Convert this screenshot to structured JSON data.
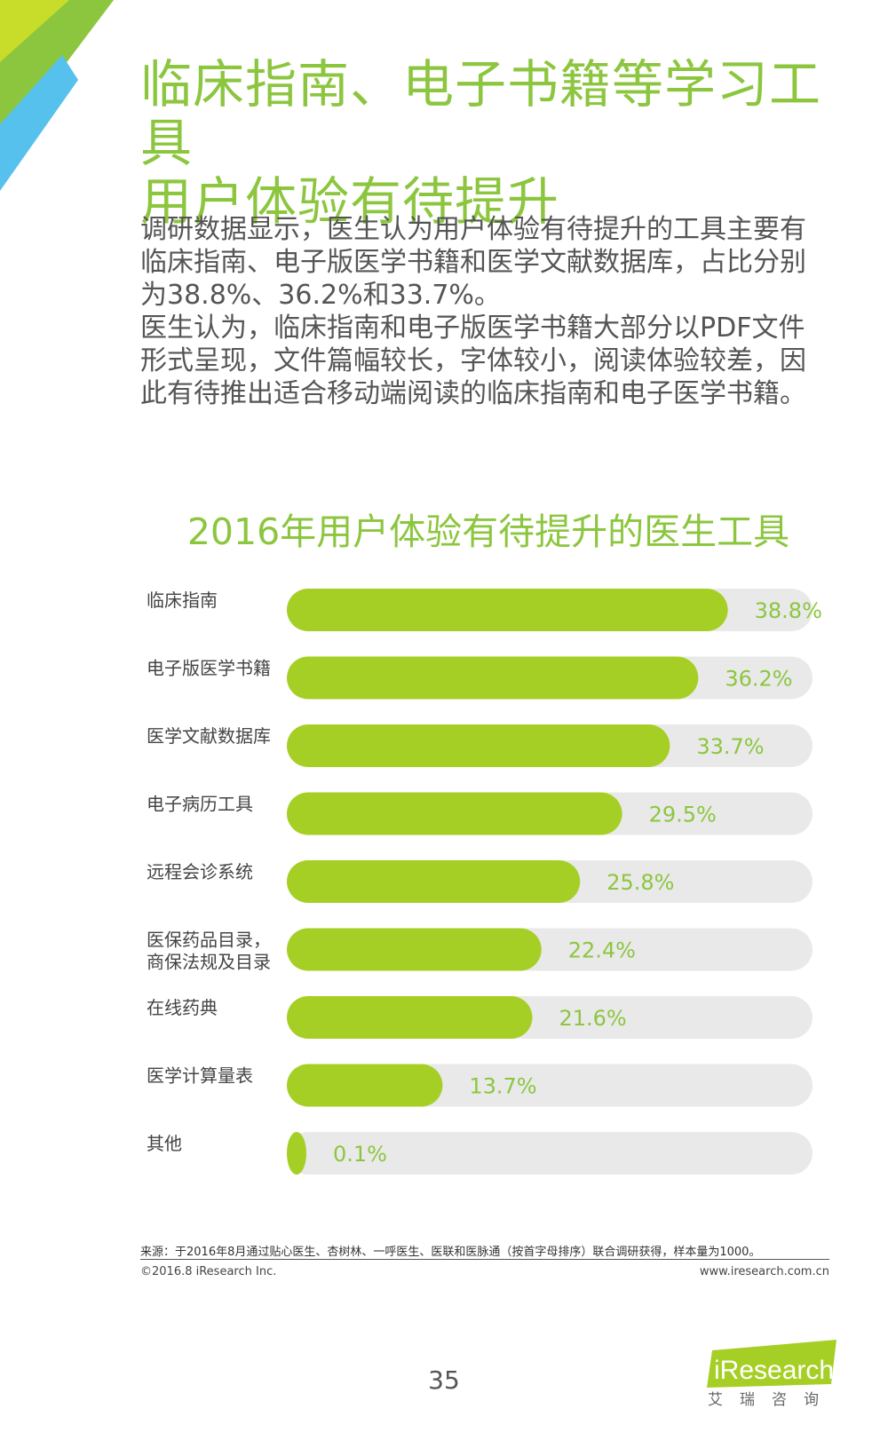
{
  "page": {
    "title_lines": [
      "临床指南、电子书籍等学习工具",
      "用户体验有待提升"
    ],
    "paragraphs": [
      "调研数据显示，医生认为用户体验有待提升的工具主要有临床指南、电子版医学书籍和医学文献数据库，占比分别为38.8%、36.2%和33.7%。",
      "医生认为，临床指南和电子版医学书籍大部分以PDF文件形式呈现，文件篇幅较长，字体较小，阅读体验较差，因此有待推出适合移动端阅读的临床指南和电子医学书籍。"
    ],
    "source": "来源：于2016年8月通过贴心医生、杏树林、一呼医生、医联和医脉通（按首字母排序）联合调研获得，样本量为1000。",
    "copyright": "©2016.8  iResearch Inc.",
    "website": "www.iresearch.com.cn",
    "page_number": "35",
    "logo_text": "iResearch",
    "logo_sub": "艾瑞咨询"
  },
  "colors": {
    "accent_green": "#8cc63f",
    "bar_fill": "#a6cf26",
    "track": "#e9e9e9",
    "corner_blue": "#55c1ec"
  },
  "chart_data": {
    "type": "bar",
    "orientation": "horizontal",
    "title": "2016年用户体验有待提升的医生工具",
    "categories": [
      "临床指南",
      "电子版医学书籍",
      "医学文献数据库",
      "电子病历工具",
      "远程会诊系统",
      "医保药品目录，\n商保法规及目录",
      "在线药典",
      "医学计算量表",
      "其他"
    ],
    "values": [
      38.8,
      36.2,
      33.7,
      29.5,
      25.8,
      22.4,
      21.6,
      13.7,
      0.1
    ],
    "value_labels": [
      "38.8%",
      "36.2%",
      "33.7%",
      "29.5%",
      "25.8%",
      "22.4%",
      "21.6%",
      "13.7%",
      "0.1%"
    ],
    "unit": "%",
    "xlim": [
      0,
      50
    ]
  }
}
